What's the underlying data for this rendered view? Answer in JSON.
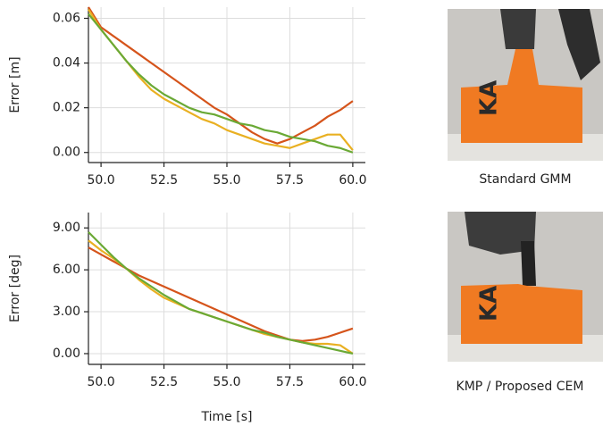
{
  "chart_data": [
    {
      "type": "line",
      "y_label": "Error [m]",
      "x": [
        49.5,
        50,
        50.5,
        51,
        51.5,
        52,
        52.5,
        53,
        53.5,
        54,
        54.5,
        55,
        55.5,
        56,
        56.5,
        57,
        57.5,
        58,
        58.5,
        59,
        59.5,
        60
      ],
      "series": [
        {
          "color": "#d5541b",
          "values": [
            0.065,
            0.056,
            0.052,
            0.048,
            0.044,
            0.04,
            0.036,
            0.032,
            0.028,
            0.024,
            0.02,
            0.017,
            0.013,
            0.009,
            0.006,
            0.004,
            0.006,
            0.009,
            0.012,
            0.016,
            0.019,
            0.023
          ]
        },
        {
          "color": "#e9b022",
          "values": [
            0.064,
            0.055,
            0.048,
            0.041,
            0.034,
            0.028,
            0.024,
            0.021,
            0.018,
            0.015,
            0.013,
            0.01,
            0.008,
            0.006,
            0.004,
            0.003,
            0.002,
            0.004,
            0.006,
            0.008,
            0.008,
            0.001
          ]
        },
        {
          "color": "#6aa935",
          "values": [
            0.062,
            0.055,
            0.048,
            0.041,
            0.035,
            0.03,
            0.026,
            0.023,
            0.02,
            0.018,
            0.017,
            0.015,
            0.013,
            0.012,
            0.01,
            0.009,
            0.007,
            0.006,
            0.005,
            0.003,
            0.002,
            0.0
          ]
        }
      ],
      "xlim": [
        49.5,
        60.5
      ],
      "xticks": [
        {
          "value": 50,
          "label": "50.0"
        },
        52.5,
        {
          "value": 55,
          "label": "55.0"
        },
        57.5,
        {
          "value": 60,
          "label": "60.0"
        }
      ],
      "ylim": [
        -0.0045,
        0.065
      ],
      "yticks": [
        {
          "value": 0,
          "label": "0.00"
        },
        0.02,
        0.04,
        0.06
      ],
      "grid": true
    },
    {
      "type": "line",
      "y_label": "Error [deg]",
      "x_label": "Time [s]",
      "x": [
        49.5,
        50,
        50.5,
        51,
        51.5,
        52,
        52.5,
        53,
        53.5,
        54,
        54.5,
        55,
        55.5,
        56,
        56.5,
        57,
        57.5,
        58,
        58.5,
        59,
        59.5,
        60
      ],
      "series": [
        {
          "color": "#d5541b",
          "values": [
            7.6,
            7.1,
            6.6,
            6.1,
            5.6,
            5.2,
            4.8,
            4.4,
            4.0,
            3.6,
            3.2,
            2.8,
            2.4,
            2.0,
            1.6,
            1.3,
            1.0,
            0.9,
            1.0,
            1.2,
            1.5,
            1.8
          ]
        },
        {
          "color": "#e9b022",
          "values": [
            8.1,
            7.4,
            6.8,
            6.1,
            5.3,
            4.6,
            4.0,
            3.6,
            3.2,
            2.9,
            2.6,
            2.3,
            2.0,
            1.7,
            1.4,
            1.2,
            1.0,
            0.8,
            0.7,
            0.7,
            0.6,
            0.0
          ]
        },
        {
          "color": "#6aa935",
          "values": [
            8.7,
            7.8,
            6.9,
            6.1,
            5.4,
            4.8,
            4.2,
            3.7,
            3.2,
            2.9,
            2.6,
            2.3,
            2.0,
            1.7,
            1.5,
            1.2,
            1.0,
            0.8,
            0.6,
            0.4,
            0.2,
            0.0
          ]
        }
      ],
      "xlim": [
        49.5,
        60.5
      ],
      "xticks": [
        {
          "value": 50,
          "label": "50.0"
        },
        52.5,
        {
          "value": 55,
          "label": "55.0"
        },
        57.5,
        {
          "value": 60,
          "label": "60.0"
        }
      ],
      "ylim": [
        -0.77,
        10.1
      ],
      "yticks": [
        {
          "value": 0,
          "label": "0.00"
        },
        {
          "value": 3,
          "label": "3.00"
        },
        {
          "value": 6,
          "label": "6.00"
        },
        {
          "value": 9,
          "label": "9.00"
        }
      ],
      "grid": true
    }
  ],
  "images": [
    {
      "caption": "Standard GMM"
    },
    {
      "caption": "KMP / Proposed CEM"
    }
  ]
}
